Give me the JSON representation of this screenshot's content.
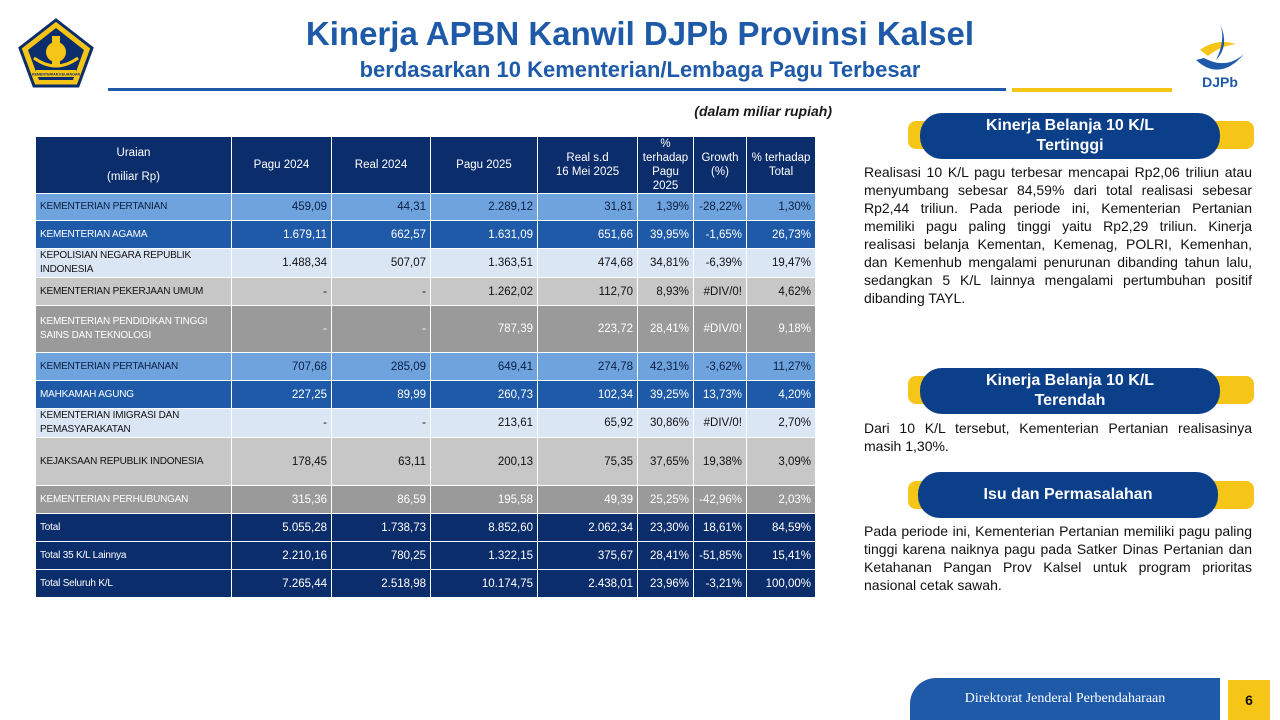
{
  "header": {
    "title": "Kinerja APBN Kanwil DJPb Provinsi Kalsel",
    "subtitle": "berdasarkan 10 Kementerian/Lembaga Pagu Terbesar",
    "logo_right_text": "DJPb",
    "logo_left_ribbon": "KEMENTERIAN KEUANGAN"
  },
  "unit_note": "(dalam miliar rupiah)",
  "table": {
    "headers": [
      [
        "Uraian",
        "(miliar Rp)"
      ],
      [
        "Pagu 2024"
      ],
      [
        "Real 2024"
      ],
      [
        "Pagu 2025"
      ],
      [
        "Real s.d",
        "16 Mei 2025"
      ],
      [
        "% terhadap",
        "Pagu 2025"
      ],
      [
        "Growth",
        "(%)"
      ],
      [
        "% terhadap",
        "Total"
      ]
    ],
    "rows": [
      {
        "style": "r-light",
        "cells": [
          "KEMENTERIAN PERTANIAN",
          "459,09",
          "44,31",
          "2.289,12",
          "31,81",
          "1,39%",
          "-28,22%",
          "1,30%"
        ]
      },
      {
        "style": "r-blue",
        "cells": [
          "KEMENTERIAN AGAMA",
          "1.679,11",
          "662,57",
          "1.631,09",
          "651,66",
          "39,95%",
          "-1,65%",
          "26,73%"
        ]
      },
      {
        "style": "r-pale",
        "cells": [
          "KEPOLISIAN NEGARA REPUBLIK INDONESIA",
          "1.488,34",
          "507,07",
          "1.363,51",
          "474,68",
          "34,81%",
          "-6,39%",
          "19,47%"
        ]
      },
      {
        "style": "r-gray",
        "cells": [
          "KEMENTERIAN PEKERJAAN UMUM",
          "-",
          "-",
          "1.262,02",
          "112,70",
          "8,93%",
          "#DIV/0!",
          "4,62%"
        ]
      },
      {
        "style": "r-dgray",
        "cells": [
          "KEMENTERIAN PENDIDIKAN TINGGI SAINS DAN TEKNOLOGI",
          "-",
          "-",
          "787,39",
          "223,72",
          "28,41%",
          "#DIV/0!",
          "9,18%"
        ]
      },
      {
        "style": "r-light",
        "cells": [
          "KEMENTERIAN PERTAHANAN",
          "707,68",
          "285,09",
          "649,41",
          "274,78",
          "42,31%",
          "-3,62%",
          "11,27%"
        ]
      },
      {
        "style": "r-blue",
        "cells": [
          "MAHKAMAH AGUNG",
          "227,25",
          "89,99",
          "260,73",
          "102,34",
          "39,25%",
          "13,73%",
          "4,20%"
        ]
      },
      {
        "style": "r-pale",
        "cells": [
          "KEMENTERIAN IMIGRASI DAN PEMASYARAKATAN",
          "-",
          "-",
          "213,61",
          "65,92",
          "30,86%",
          "#DIV/0!",
          "2,70%"
        ]
      },
      {
        "style": "r-gray",
        "cells": [
          "KEJAKSAAN REPUBLIK INDONESIA",
          "178,45",
          "63,11",
          "200,13",
          "75,35",
          "37,65%",
          "19,38%",
          "3,09%"
        ]
      },
      {
        "style": "r-dgray",
        "cells": [
          "KEMENTERIAN PERHUBUNGAN",
          "315,36",
          "86,59",
          "195,58",
          "49,39",
          "25,25%",
          "-42,96%",
          "2,03%"
        ]
      },
      {
        "style": "r-navy",
        "cells": [
          "Total",
          "5.055,28",
          "1.738,73",
          "8.852,60",
          "2.062,34",
          "23,30%",
          "18,61%",
          "84,59%"
        ]
      },
      {
        "style": "r-navy",
        "cells": [
          "Total 35 K/L Lainnya",
          "2.210,16",
          "780,25",
          "1.322,15",
          "375,67",
          "28,41%",
          "-51,85%",
          "15,41%"
        ]
      },
      {
        "style": "r-navy",
        "cells": [
          "Total Seluruh K/L",
          "7.265,44",
          "2.518,98",
          "10.174,75",
          "2.438,01",
          "23,96%",
          "-3,21%",
          "100,00%"
        ]
      }
    ]
  },
  "panels": [
    {
      "title": "Kinerja Belanja 10 K/L Tertinggi",
      "text": "Realisasi 10 K/L pagu terbesar mencapai Rp2,06 triliun atau menyumbang sebesar 84,59% dari total realisasi sebesar Rp2,44 triliun. Pada periode ini, Kementerian Pertanian memiliki pagu paling tinggi yaitu Rp2,29 triliun. Kinerja realisasi belanja Kementan, Kemenag, POLRI, Kemenhan, dan Kemenhub mengalami penurunan dibanding tahun lalu, sedangkan 5 K/L lainnya mengalami pertumbuhan positif dibanding TAYL."
    },
    {
      "title": "Kinerja Belanja 10 K/L Terendah",
      "text": "Dari 10 K/L tersebut, Kementerian Pertanian realisasinya masih 1,30%."
    },
    {
      "title": "Isu dan Permasalahan",
      "text": "Pada periode ini, Kementerian Pertanian memiliki pagu paling tinggi karena naiknya pagu pada Satker Dinas Pertanian dan Ketahanan Pangan Prov Kalsel untuk program prioritas nasional cetak sawah."
    }
  ],
  "footer": {
    "org": "Direktorat Jenderal Perbendaharaan",
    "page": "6"
  },
  "colors": {
    "brand_blue": "#1e5aa8",
    "navy": "#0c2d6b",
    "accent_yellow": "#f5c518"
  }
}
